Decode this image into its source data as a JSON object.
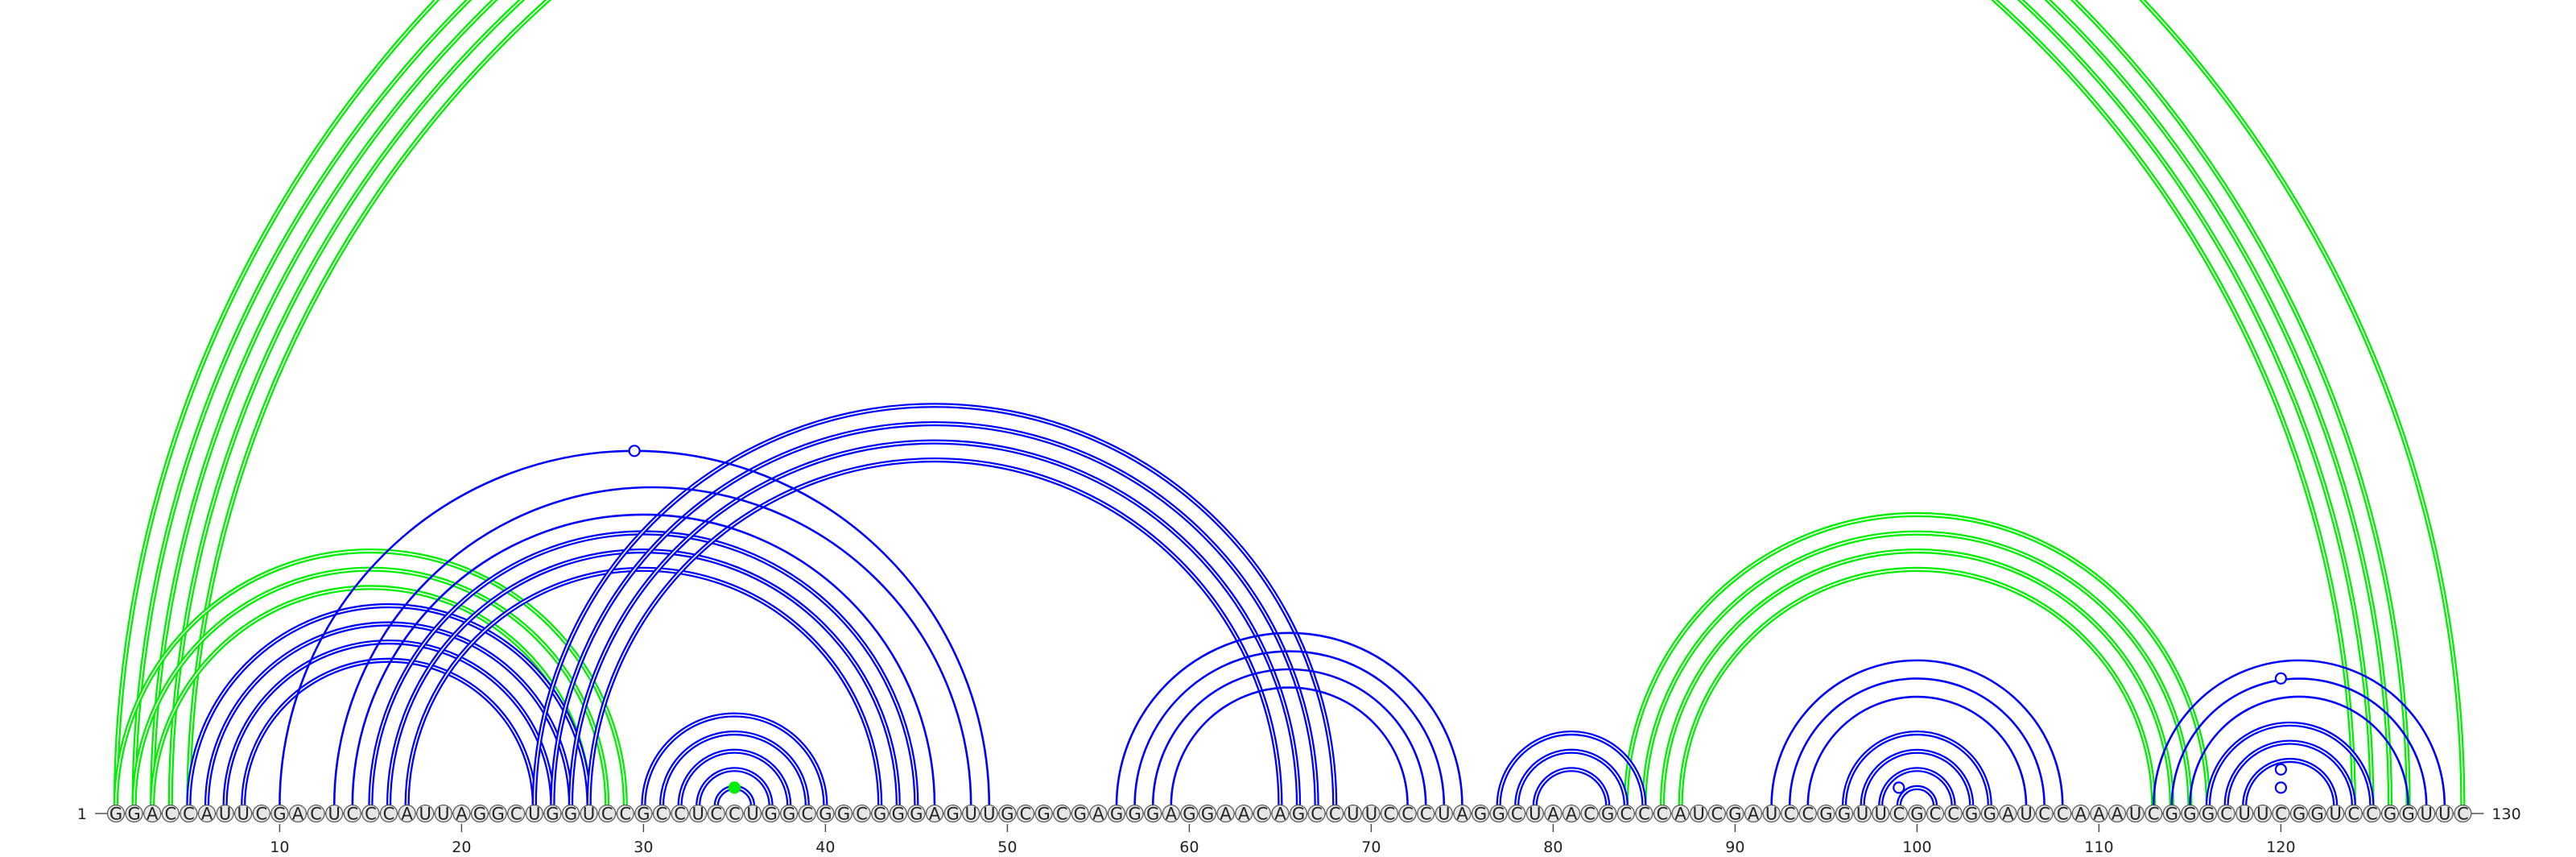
{
  "chart_data": {
    "type": "arc-diagram",
    "sequence": "GGACCAUUCGACUCCCAUUAGGCUGGUCCGCCUCCUGGCGGCGGGAGUUGCGCGAGGGAGGAACAGCCUUCCCUAGGCUAACGCCCAUCGAUCCGGUUCGCCGGAUCCAAAUCGGGCUUCGGUCCGGUUC",
    "start_label": "1",
    "end_label": "130",
    "ticks": [
      10,
      20,
      30,
      40,
      50,
      60,
      70,
      80,
      90,
      100,
      110,
      120
    ],
    "colors": {
      "upper": "#0000ff",
      "lower": "#00ee00",
      "ink": "#222222"
    },
    "blue_helices": [
      {
        "i": 5,
        "j": 27,
        "n": 4,
        "double": true
      },
      {
        "i": 15,
        "j": 45,
        "n": 3,
        "double": true
      },
      {
        "i": 24,
        "j": 68,
        "n": 4,
        "double": true
      },
      {
        "i": 10,
        "j": 49,
        "n": 1,
        "double": false
      },
      {
        "i": 13,
        "j": 48,
        "n": 1,
        "double": false
      },
      {
        "i": 14,
        "j": 46,
        "n": 1,
        "double": false
      },
      {
        "i": 30,
        "j": 40,
        "n": 5,
        "double": true
      },
      {
        "i": 56,
        "j": 75,
        "n": 4,
        "double": false
      },
      {
        "i": 77,
        "j": 85,
        "n": 3,
        "double": true
      },
      {
        "i": 92,
        "j": 108,
        "n": 3,
        "double": false
      },
      {
        "i": 96,
        "j": 104,
        "n": 4,
        "double": true
      },
      {
        "i": 113,
        "j": 129,
        "n": 3,
        "double": false
      },
      {
        "i": 116,
        "j": 125,
        "n": 3,
        "double": true
      }
    ],
    "green_helices": [
      {
        "i": 1,
        "j": 130,
        "n": 1,
        "double": true
      },
      {
        "i": 2,
        "j": 127,
        "n": 4,
        "double": true
      },
      {
        "i": 1,
        "j": 29,
        "n": 3,
        "double": true
      },
      {
        "i": 84,
        "j": 116,
        "n": 4,
        "double": true
      },
      {
        "i": 34,
        "j": 36,
        "n": 1,
        "double": true
      }
    ],
    "markers": [
      {
        "pos": 29.5,
        "arc": [
          10,
          49
        ],
        "filled": false,
        "color": "#0000ff"
      },
      {
        "pos": 35,
        "arc": [
          34,
          36
        ],
        "filled": true,
        "color": "#00ee00"
      },
      {
        "pos": 99,
        "arc": [
          98,
          100
        ],
        "filled": false,
        "color": "#0000ff"
      },
      {
        "pos": 120,
        "arc": [
          119,
          121
        ],
        "filled": false,
        "color": "#0000ff"
      },
      {
        "pos": 120,
        "arc": [
          118,
          122
        ],
        "filled": false,
        "color": "#0000ff"
      },
      {
        "pos": 120,
        "arc": [
          113,
          127
        ],
        "filled": false,
        "color": "#0000ff"
      }
    ]
  }
}
